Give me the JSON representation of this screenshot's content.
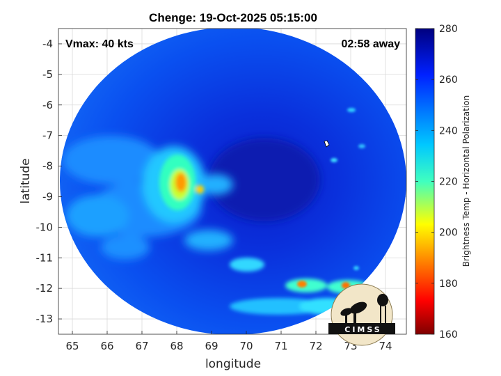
{
  "chart_data": {
    "type": "heatmap",
    "title": "Chenge: 19-Oct-2025 05:15:00",
    "xlabel": "longitude",
    "ylabel": "latitude",
    "xlim": [
      64.6,
      74.6
    ],
    "ylim": [
      -13.5,
      -3.5
    ],
    "xticks": [
      65,
      66,
      67,
      68,
      69,
      70,
      71,
      72,
      73,
      74
    ],
    "yticks": [
      -4,
      -5,
      -6,
      -7,
      -8,
      -9,
      -10,
      -11,
      -12,
      -13
    ],
    "grid": true,
    "annotations": {
      "vmax": "Vmax: 40 kts",
      "time_away": "02:58 away"
    },
    "colorbar": {
      "label": "Brightness Temp - Horizontal Polarization",
      "range": [
        160,
        280
      ],
      "ticks": [
        160,
        180,
        200,
        220,
        240,
        260,
        280
      ],
      "colormap": [
        "#7f0000",
        "#ff0000",
        "#ffff00",
        "#00ffff",
        "#0000ff",
        "#00007f"
      ]
    },
    "swath": {
      "center_lon": 69.5,
      "center_lat": -8.5,
      "edge": "circular"
    },
    "features": [
      {
        "name": "main convective band",
        "lon": 68.2,
        "lat": -8.7,
        "min_temp": 190
      },
      {
        "name": "southern band cell 1",
        "lon": 71.7,
        "lat": -11.9,
        "min_temp": 185
      },
      {
        "name": "southern band cell 2",
        "lon": 73.0,
        "lat": -11.9,
        "min_temp": 185
      },
      {
        "name": "storm center",
        "lon": 70.6,
        "lat": -8.5,
        "temp": 272
      }
    ]
  },
  "logo": {
    "text": "CIMSS"
  },
  "colors": {
    "axis": "#262626",
    "grid": "#d9d9d9",
    "background": "#ffffff"
  }
}
